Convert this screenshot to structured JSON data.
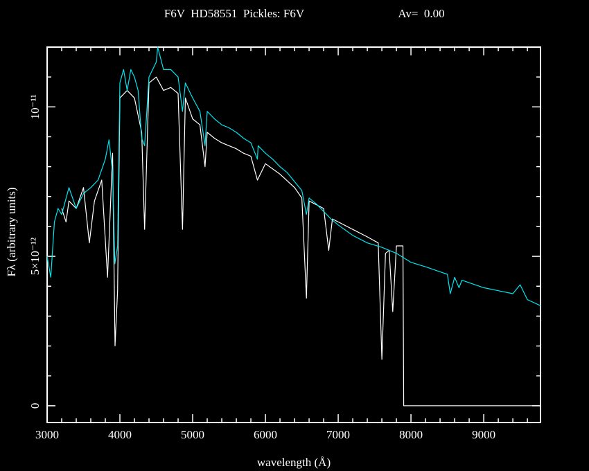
{
  "chart_data": {
    "type": "line",
    "title": "F6V  HD58551  Pickles: F6V",
    "annotation": "Av=  0.00",
    "xlabel": "wavelength (Å)",
    "ylabel": "Fλ (arbitrary units)",
    "xlim": [
      3000,
      9780
    ],
    "ylim": [
      -5.6e-13,
      1.2e-11
    ],
    "xticks": [
      3000,
      4000,
      5000,
      6000,
      7000,
      8000,
      9000
    ],
    "yticks": [
      0,
      {
        "value": 5e-12,
        "label": "5×10⁻¹²"
      },
      {
        "value": 1e-11,
        "label": "10⁻¹¹"
      }
    ],
    "series": [
      {
        "color": "#ffffff",
        "x": [
          3200,
          3260,
          3300,
          3400,
          3500,
          3580,
          3650,
          3750,
          3830,
          3900,
          3933,
          3968,
          4000,
          4100,
          4200,
          4300,
          4340,
          4400,
          4500,
          4600,
          4700,
          4800,
          4861,
          4900,
          5000,
          5100,
          5170,
          5200,
          5300,
          5400,
          5500,
          5600,
          5700,
          5800,
          5890,
          6000,
          6200,
          6400,
          6500,
          6563,
          6600,
          6800,
          6870,
          6920,
          7000,
          7200,
          7400,
          7550,
          7600,
          7650,
          7700,
          7750,
          7800,
          7890,
          7900,
          9780
        ],
        "values": [
          6.6e-12,
          6.15e-12,
          6.85e-12,
          6.6e-12,
          7.3e-12,
          5.45e-12,
          6.85e-12,
          7.55e-12,
          4.3e-12,
          8.45e-12,
          2e-12,
          3.85e-12,
          1.03e-11,
          1.055e-11,
          1.03e-11,
          9.15e-12,
          5.9e-12,
          1.08e-11,
          1.1e-11,
          1.055e-11,
          1.065e-11,
          1.045e-11,
          5.9e-12,
          1.03e-11,
          9.6e-12,
          9.4e-12,
          8e-12,
          9.15e-12,
          8.95e-12,
          8.8e-12,
          8.7e-12,
          8.6e-12,
          8.45e-12,
          8.35e-12,
          7.55e-12,
          8.1e-12,
          7.75e-12,
          7.3e-12,
          6.95e-12,
          3.6e-12,
          6.85e-12,
          6.6e-12,
          5.2e-12,
          6.25e-12,
          6.15e-12,
          5.9e-12,
          5.65e-12,
          5.45e-12,
          1.55e-12,
          5.1e-12,
          5.2e-12,
          3.15e-12,
          5.35e-12,
          5.35e-12,
          0,
          0
        ]
      },
      {
        "color": "#00e5ee",
        "x": [
          3000,
          3050,
          3100,
          3150,
          3200,
          3250,
          3300,
          3400,
          3500,
          3600,
          3700,
          3800,
          3850,
          3900,
          3930,
          3968,
          4000,
          4050,
          4100,
          4150,
          4200,
          4250,
          4300,
          4340,
          4400,
          4500,
          4520,
          4600,
          4700,
          4800,
          4861,
          4900,
          5000,
          5100,
          5170,
          5200,
          5300,
          5400,
          5500,
          5600,
          5700,
          5800,
          5890,
          5900,
          6000,
          6100,
          6200,
          6300,
          6400,
          6500,
          6563,
          6600,
          6700,
          6800,
          6900,
          7000,
          7200,
          7400,
          7600,
          7800,
          8000,
          8200,
          8500,
          8540,
          8600,
          8660,
          8700,
          9000,
          9200,
          9400,
          9500,
          9600,
          9780
        ],
        "values": [
          5e-12,
          4.3e-12,
          6.15e-12,
          6.6e-12,
          6.4e-12,
          6.85e-12,
          7.3e-12,
          6.6e-12,
          7.1e-12,
          7.3e-12,
          7.55e-12,
          8.25e-12,
          8.9e-12,
          7.8e-12,
          4.75e-12,
          5.35e-12,
          1.08e-11,
          1.125e-11,
          1.055e-11,
          1.125e-11,
          1.1e-11,
          1.055e-11,
          8.95e-12,
          8.7e-12,
          1.1e-11,
          1.15e-11,
          1.2e-11,
          1.125e-11,
          1.125e-11,
          1.1e-11,
          9.85e-12,
          1.08e-11,
          1.03e-11,
          9.85e-12,
          8.7e-12,
          9.85e-12,
          9.6e-12,
          9.4e-12,
          9.3e-12,
          9.15e-12,
          8.95e-12,
          8.8e-12,
          8.25e-12,
          8.7e-12,
          8.45e-12,
          8.25e-12,
          8e-12,
          7.8e-12,
          7.5e-12,
          7.2e-12,
          6.4e-12,
          6.95e-12,
          6.75e-12,
          6.5e-12,
          6.25e-12,
          6.05e-12,
          5.7e-12,
          5.45e-12,
          5.3e-12,
          5.1e-12,
          4.8e-12,
          4.65e-12,
          4.4e-12,
          3.75e-12,
          4.3e-12,
          3.95e-12,
          4.2e-12,
          3.95e-12,
          3.85e-12,
          3.75e-12,
          4.05e-12,
          3.55e-12,
          3.35e-12
        ]
      }
    ]
  }
}
